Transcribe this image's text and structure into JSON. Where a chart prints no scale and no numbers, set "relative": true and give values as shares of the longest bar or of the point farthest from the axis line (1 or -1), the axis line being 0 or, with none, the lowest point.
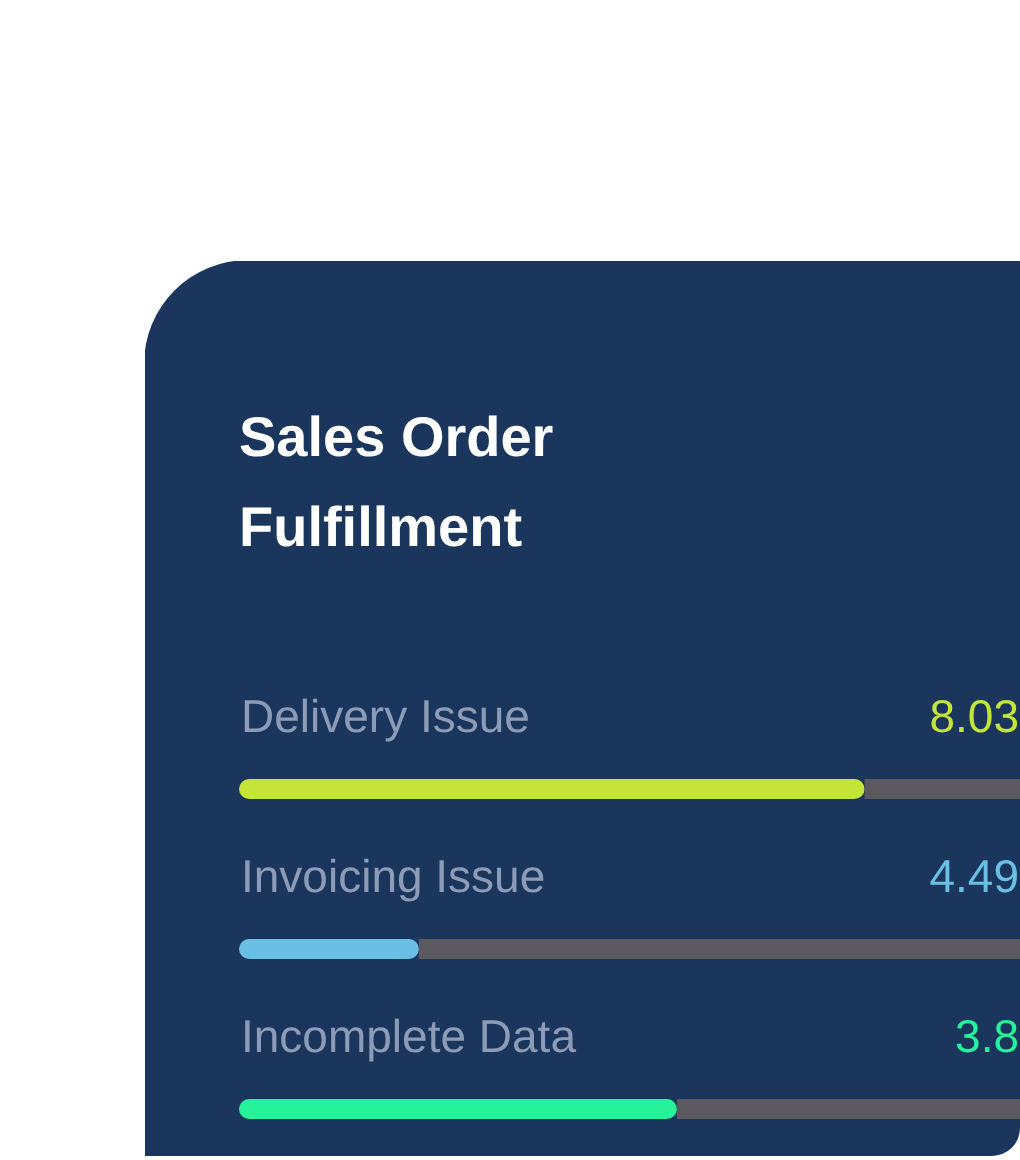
{
  "chart_data": {
    "type": "bar",
    "orientation": "horizontal",
    "stacked": true,
    "relative": true,
    "title": "Sales Order Fulfillment",
    "categories": [
      "Delivery Issue",
      "Invoicing Issue",
      "Incomplete Data"
    ],
    "series": [
      {
        "colors": [
          "#c4e538",
          "#6ac0e4",
          "#26f29a"
        ],
        "values": [
          0.8,
          0.23,
          0.56
        ]
      },
      {
        "color": "#5a5a5e",
        "values": [
          0.2,
          0.77,
          0.44
        ]
      }
    ],
    "annotations": [
      "8.03",
      "4.49",
      "3.8"
    ]
  }
}
